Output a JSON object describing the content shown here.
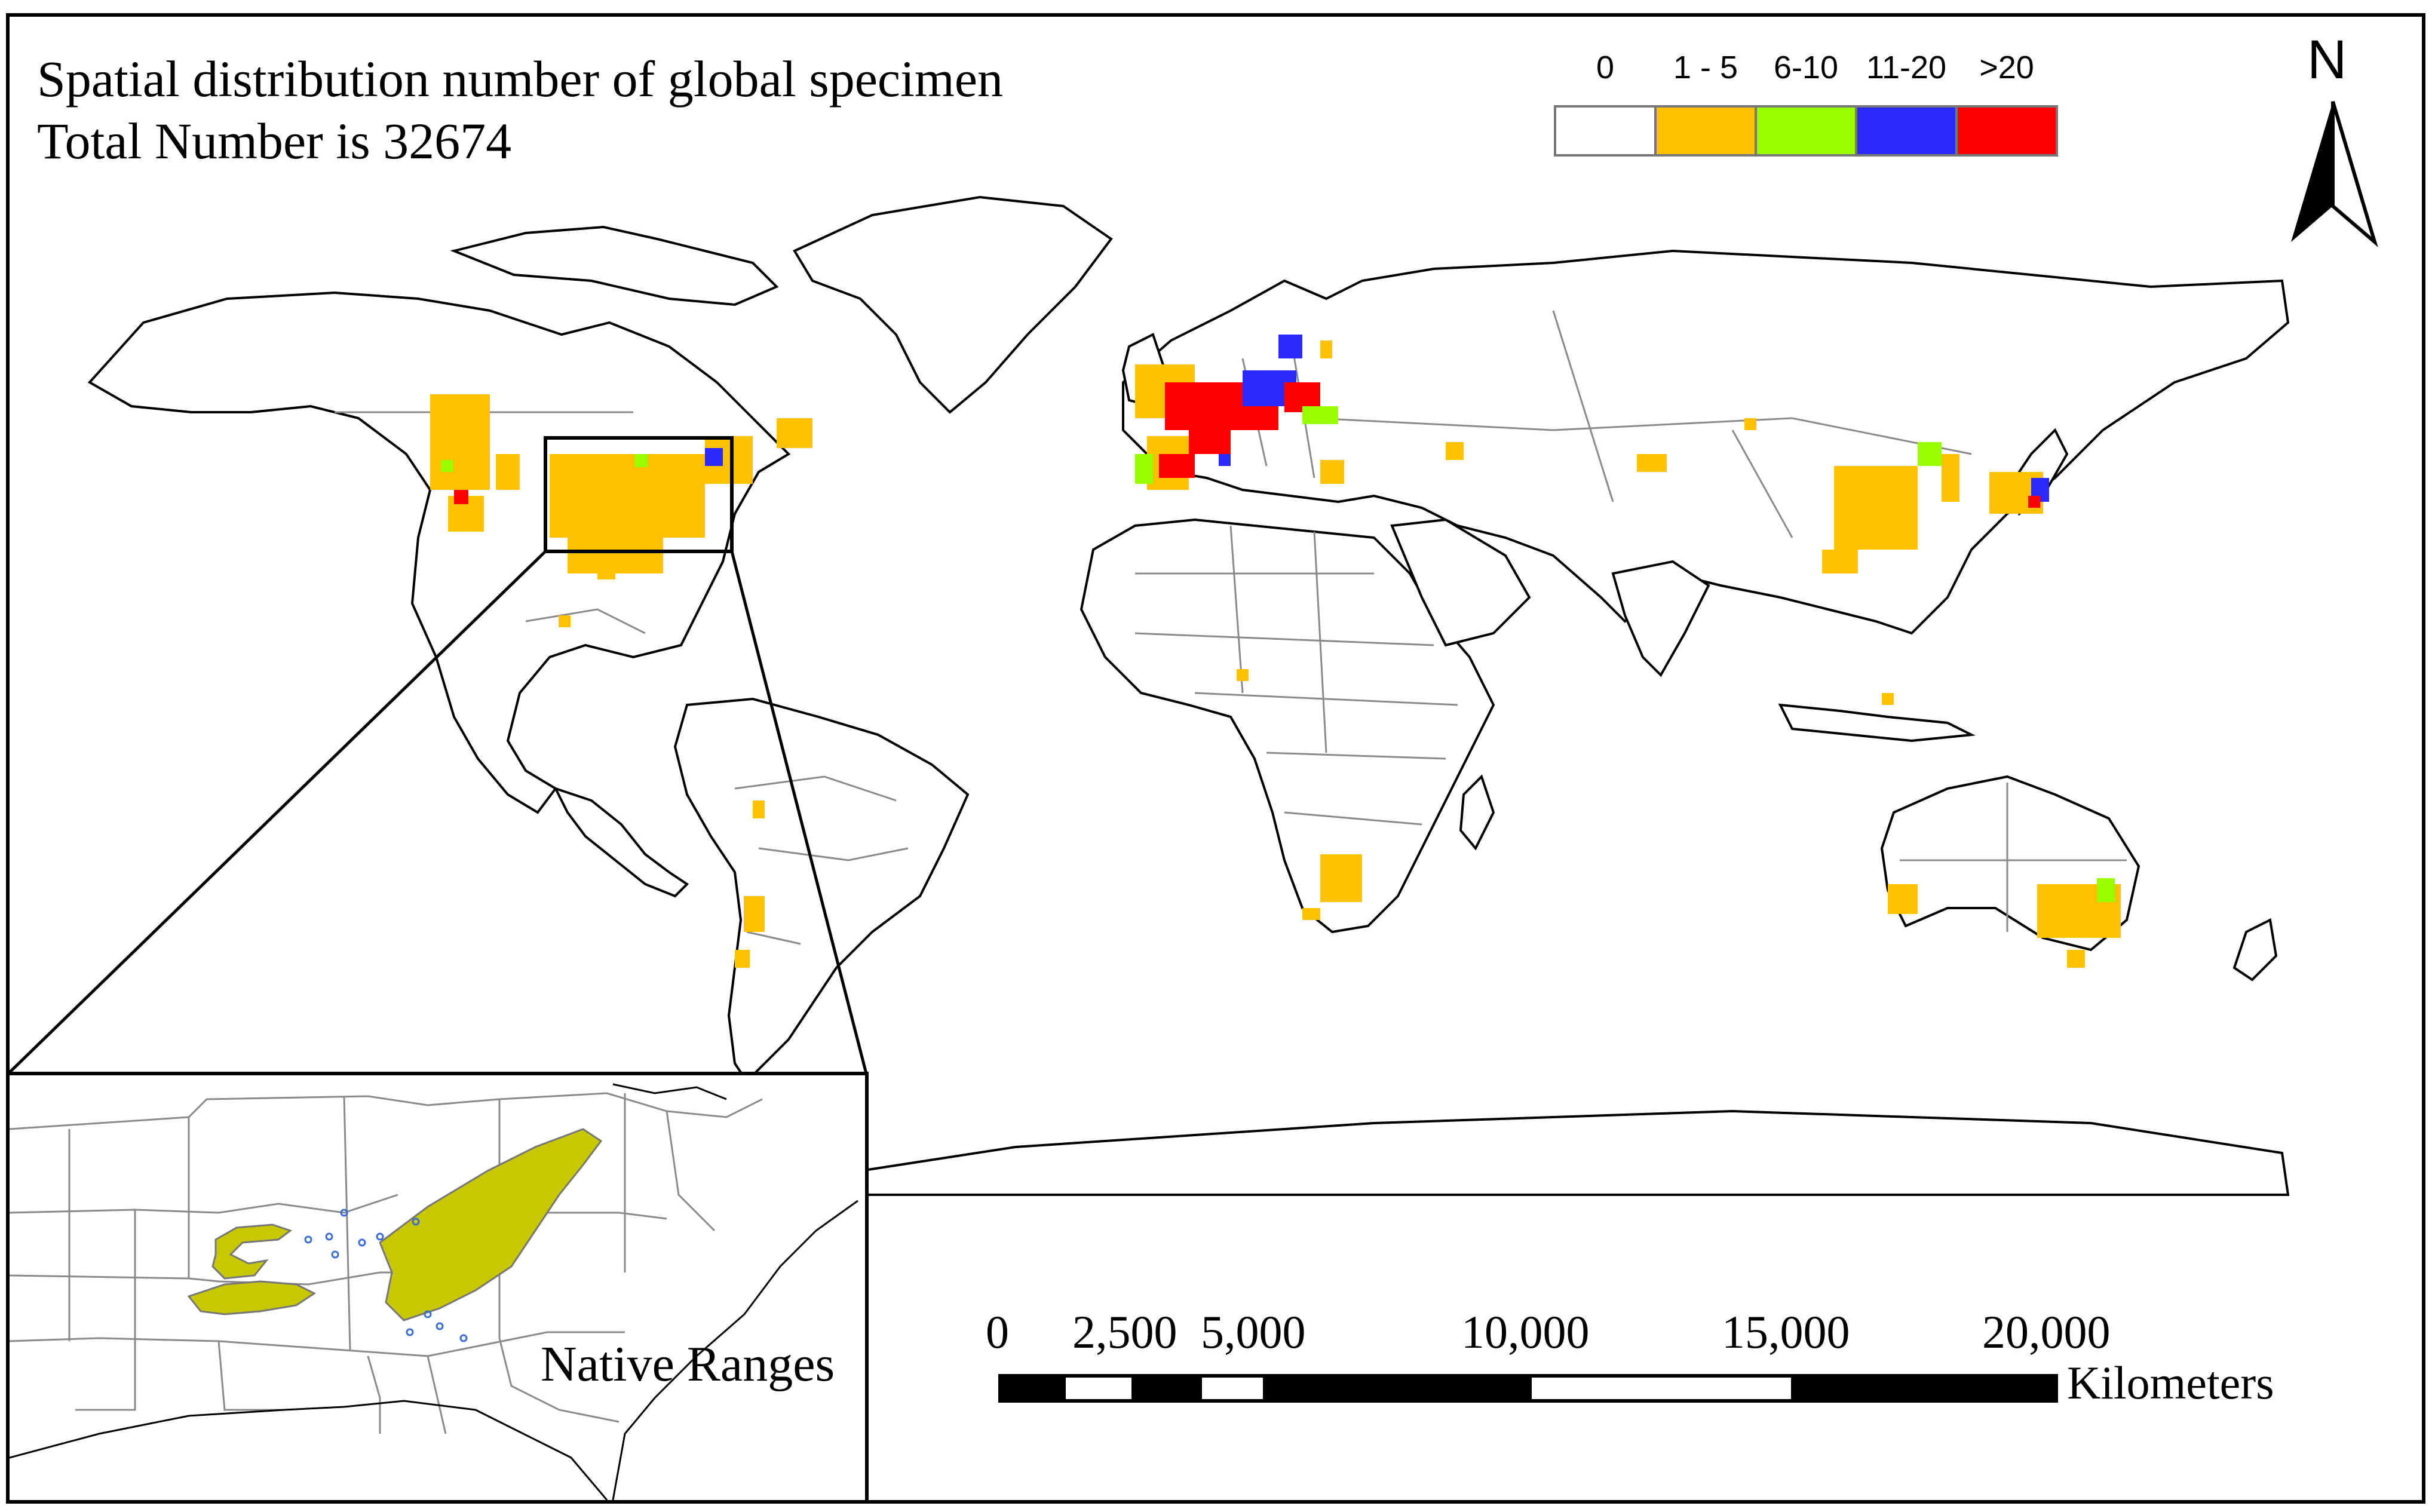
{
  "title": {
    "line1": "Spatial distribution number of global specimen",
    "line2": "Total Number is 32674"
  },
  "legend": {
    "classes": [
      {
        "label": "0",
        "color": "#ffffff"
      },
      {
        "label": "1 - 5",
        "color": "#ffc000"
      },
      {
        "label": "6-10",
        "color": "#99ff00"
      },
      {
        "label": "11-20",
        "color": "#2a2aff"
      },
      {
        "label": ">20",
        "color": "#ff0000"
      }
    ]
  },
  "north_arrow": {
    "label": "N"
  },
  "inset": {
    "label": "Native Ranges",
    "fill_color": "#c8c800"
  },
  "scale_bar": {
    "ticks": [
      "0",
      "2,500",
      "5,000",
      "10,000",
      "15,000",
      "20,000"
    ],
    "unit": "Kilometers"
  },
  "colors": {
    "country_border": "#8a8a8a",
    "coastline": "#000000",
    "land": "#ffffff"
  }
}
